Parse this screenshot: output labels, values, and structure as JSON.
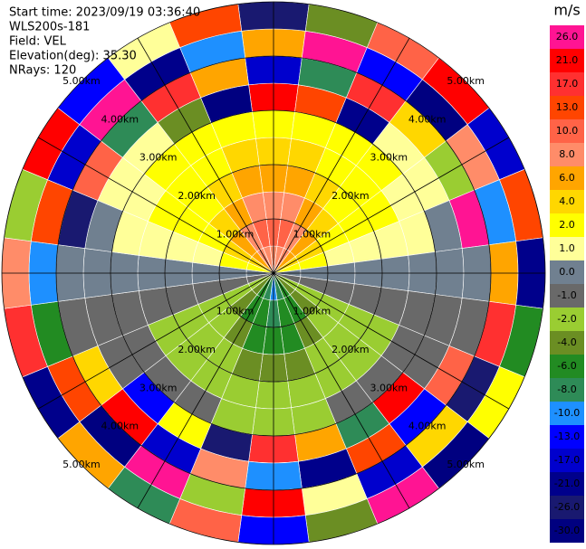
{
  "chart_data": {
    "type": "ppi",
    "annotations": [
      "Start time: 2023/09/19 03:36:40",
      "WLS200s-181",
      "Field: VEL",
      "Elevation(deg): 35.30",
      "NRays: 120"
    ],
    "range_labels": [
      "1.00km",
      "2.00km",
      "3.00km",
      "4.00km",
      "5.00km"
    ],
    "colorbar": {
      "label": "m/s",
      "ticks": [
        {
          "value": 26,
          "label": "26.0"
        },
        {
          "value": 21,
          "label": "21.0"
        },
        {
          "value": 17,
          "label": "17.0"
        },
        {
          "value": 13,
          "label": "13.0"
        },
        {
          "value": 10,
          "label": "10.0"
        },
        {
          "value": 8,
          "label": "8.0"
        },
        {
          "value": 6,
          "label": "6.0"
        },
        {
          "value": 4,
          "label": "4.0"
        },
        {
          "value": 2,
          "label": "2.0"
        },
        {
          "value": 1,
          "label": "1.0"
        },
        {
          "value": 0,
          "label": "0.0"
        },
        {
          "value": -1,
          "label": "-1.0"
        },
        {
          "value": -2,
          "label": "-2.0"
        },
        {
          "value": -4,
          "label": "-4.0"
        },
        {
          "value": -6,
          "label": "-6.0"
        },
        {
          "value": -8,
          "label": "-8.0"
        },
        {
          "value": -10,
          "label": "-10.0"
        },
        {
          "value": -13,
          "label": "-13.0"
        },
        {
          "value": -17,
          "label": "-17.0"
        },
        {
          "value": -21,
          "label": "-21.0"
        },
        {
          "value": -26,
          "label": "-26.0"
        },
        {
          "value": -30,
          "label": "-30.0"
        }
      ],
      "colors": [
        "#ff1493",
        "#ff0000",
        "#ff3030",
        "#ff4500",
        "#ff6347",
        "#ff8c69",
        "#ffa500",
        "#ffd700",
        "#ffff00",
        "#ffff99",
        "#708090",
        "#696969",
        "#9acd32",
        "#6b8e23",
        "#228b22",
        "#2e8b57",
        "#1e90ff",
        "#0000ff",
        "#0000cd",
        "#00008b",
        "#191970",
        "#000080"
      ]
    },
    "values": [
      [
        8,
        10,
        8,
        6,
        4,
        2,
        21,
        -17,
        6,
        -26
      ],
      [
        8,
        10,
        8,
        6,
        4,
        2,
        13,
        -8,
        26,
        -4
      ],
      [
        8,
        8,
        6,
        4,
        2,
        2,
        -21,
        17,
        -13,
        10
      ],
      [
        6,
        6,
        4,
        2,
        2,
        2,
        1,
        4,
        -30,
        21
      ],
      [
        4,
        4,
        2,
        2,
        2,
        1,
        1,
        -2,
        8,
        -17
      ],
      [
        2,
        2,
        1,
        1,
        1,
        1,
        0,
        26,
        -10,
        13
      ],
      [
        0,
        0,
        0,
        0,
        0,
        0,
        0,
        0,
        6,
        -21
      ],
      [
        -1,
        -1,
        -1,
        -1,
        -1,
        -1,
        -1,
        -1,
        17,
        -6
      ],
      [
        -2,
        -2,
        -2,
        -2,
        -2,
        -1,
        -1,
        10,
        -26,
        2
      ],
      [
        -4,
        -4,
        -2,
        -2,
        -2,
        -1,
        21,
        -13,
        4,
        -30
      ],
      [
        -6,
        -6,
        -4,
        -2,
        -2,
        -1,
        -8,
        13,
        -17,
        26
      ],
      [
        -8,
        -6,
        -6,
        -4,
        -2,
        -2,
        6,
        -21,
        1,
        -4
      ],
      [
        -10,
        -8,
        -6,
        -4,
        -2,
        -2,
        17,
        -10,
        21,
        -13
      ],
      [
        -8,
        -6,
        -6,
        -4,
        -2,
        -2,
        -26,
        8,
        -2,
        10
      ],
      [
        -6,
        -6,
        -4,
        -2,
        -2,
        -1,
        2,
        -17,
        26,
        -8
      ],
      [
        -4,
        -4,
        -2,
        -2,
        -2,
        -1,
        -13,
        21,
        -30,
        6
      ],
      [
        -2,
        -2,
        -2,
        -2,
        -2,
        -1,
        -1,
        4,
        13,
        -21
      ],
      [
        -1,
        -1,
        -1,
        -1,
        -1,
        -1,
        -1,
        -1,
        -6,
        17
      ],
      [
        0,
        0,
        0,
        0,
        0,
        0,
        0,
        0,
        -10,
        8
      ],
      [
        2,
        2,
        1,
        1,
        1,
        1,
        0,
        -26,
        13,
        -2
      ],
      [
        4,
        4,
        2,
        2,
        2,
        1,
        1,
        10,
        -17,
        21
      ],
      [
        6,
        6,
        4,
        2,
        2,
        2,
        1,
        -8,
        26,
        -13
      ],
      [
        8,
        8,
        6,
        4,
        2,
        2,
        -4,
        17,
        -21,
        1
      ],
      [
        8,
        10,
        8,
        6,
        4,
        2,
        -30,
        6,
        -10,
        13
      ]
    ]
  }
}
